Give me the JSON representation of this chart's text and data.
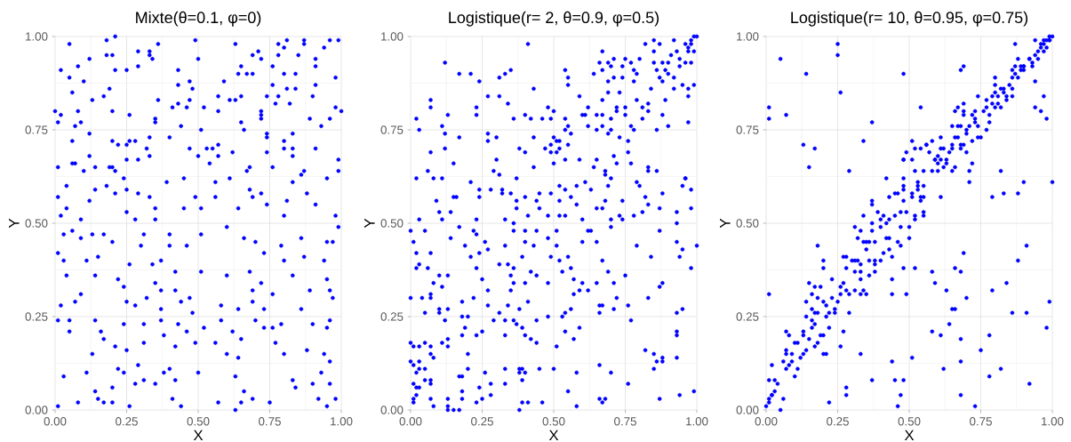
{
  "chart_data": [
    {
      "type": "scatter",
      "title": "Mixte(θ=0.1, φ=0)",
      "xlabel": "X",
      "ylabel": "Y",
      "color": "#0000ff",
      "marker": "circle",
      "grid": true,
      "xlim": [
        0,
        1
      ],
      "ylim": [
        0,
        1
      ],
      "xticks": [
        {
          "value": 0,
          "label": "0.00"
        },
        {
          "value": 0.25,
          "label": "0.25"
        },
        {
          "value": 0.5,
          "label": "0.50"
        },
        {
          "value": 0.75,
          "label": "0.75"
        },
        {
          "value": 1,
          "label": "1.00"
        }
      ],
      "yticks": [
        {
          "value": 0,
          "label": "0.00"
        },
        {
          "value": 0.25,
          "label": "0.25"
        },
        {
          "value": 0.5,
          "label": "0.50"
        },
        {
          "value": 0.75,
          "label": "0.75"
        },
        {
          "value": 1,
          "label": "1.00"
        }
      ],
      "x": [
        0.05,
        0.18,
        0.21,
        0.18,
        0.2,
        0.02,
        0.08,
        0.12,
        0.05,
        0.1,
        0.21,
        0.25,
        0.29,
        0.29,
        0.33,
        0.33,
        0.34,
        0.36,
        0.49,
        0.5,
        0.43,
        0.47,
        0.59,
        0.63,
        0.65,
        0.67,
        0.69,
        0.64,
        0.69,
        0.71,
        0.72,
        0.78,
        0.78,
        0.8,
        0.81,
        0.76,
        0.8,
        0.84,
        0.87,
        0.87,
        0.85,
        0.91,
        0.91,
        0.94,
        0.96,
        0.99,
        0.98,
        0.76,
        0.06,
        0.13,
        0.17,
        0.19,
        0.2,
        0.08,
        0.0,
        0.01,
        0.02,
        0.07,
        0.09,
        0.26,
        0.35,
        0.35,
        0.36,
        0.41,
        0.43,
        0.43,
        0.48,
        0.47,
        0.46,
        0.44,
        0.52,
        0.51,
        0.57,
        0.57,
        0.61,
        0.65,
        0.63,
        0.65,
        0.66,
        0.72,
        0.72,
        0.72,
        0.74,
        0.77,
        0.78,
        0.81,
        0.82,
        0.84,
        0.89,
        0.9,
        0.91,
        0.98,
        1.0,
        0.96,
        0.93,
        0.12,
        0.06,
        0.12,
        0.01,
        0.06,
        0.07,
        0.1,
        0.14,
        0.2,
        0.22,
        0.25,
        0.26,
        0.28,
        0.33,
        0.32,
        0.33,
        0.25,
        0.29,
        0.2,
        0.19,
        0.21,
        0.4,
        0.47,
        0.5,
        0.53,
        0.55,
        0.54,
        0.57,
        0.57,
        0.62,
        0.68,
        0.67,
        0.74,
        0.74,
        0.74,
        0.76,
        0.8,
        0.8,
        0.83,
        0.83,
        0.83,
        0.91,
        0.99,
        0.99,
        0.87,
        0.86,
        0.04,
        0.01,
        0.04,
        0.02,
        0.09,
        0.12,
        0.14,
        0.18,
        0.21,
        0.24,
        0.25,
        0.25,
        0.29,
        0.33,
        0.35,
        0.35,
        0.39,
        0.45,
        0.45,
        0.49,
        0.51,
        0.56,
        0.56,
        0.61,
        0.64,
        0.68,
        0.69,
        0.72,
        0.74,
        0.81,
        0.83,
        0.88,
        0.91,
        0.95,
        0.98,
        0.8,
        0.03,
        0.01,
        0.03,
        0.06,
        0.13,
        0.09,
        0.17,
        0.2,
        0.15,
        0.11,
        0.28,
        0.31,
        0.3,
        0.26,
        0.34,
        0.37,
        0.4,
        0.4,
        0.46,
        0.51,
        0.51,
        0.6,
        0.66,
        0.7,
        0.73,
        0.79,
        0.8,
        0.86,
        0.87,
        0.95,
        0.97,
        0.99,
        0.94,
        0.04,
        0.02,
        0.07,
        0.09,
        0.14,
        0.22,
        0.24,
        0.25,
        0.28,
        0.32,
        0.35,
        0.37,
        0.37,
        0.42,
        0.42,
        0.44,
        0.47,
        0.48,
        0.58,
        0.6,
        0.64,
        0.68,
        0.69,
        0.69,
        0.72,
        0.73,
        0.76,
        0.83,
        0.86,
        0.89,
        0.95,
        0.97,
        0.96,
        0.01,
        0.05,
        0.05,
        0.14,
        0.16,
        0.17,
        0.13,
        0.21,
        0.24,
        0.25,
        0.31,
        0.31,
        0.37,
        0.38,
        0.43,
        0.42,
        0.46,
        0.49,
        0.52,
        0.56,
        0.58,
        0.62,
        0.6,
        0.65,
        0.64,
        0.7,
        0.73,
        0.76,
        0.77,
        0.79,
        0.8,
        0.88,
        0.9,
        0.95,
        0.96,
        0.94,
        0.96,
        0.03,
        0.01,
        0.08,
        0.11,
        0.14,
        0.15,
        0.17,
        0.2,
        0.2,
        0.22,
        0.24,
        0.26,
        0.28,
        0.29,
        0.31,
        0.35,
        0.38,
        0.4,
        0.41,
        0.44,
        0.42,
        0.5,
        0.57,
        0.63,
        0.63,
        0.66,
        0.65,
        0.69,
        0.75,
        0.83,
        0.84,
        0.9,
        0.92,
        0.93,
        0.95,
        0.96,
        0.98
      ],
      "values": [
        0.98,
        0.99,
        1.0,
        0.95,
        0.95,
        0.91,
        0.92,
        0.94,
        0.89,
        0.88,
        0.91,
        0.91,
        0.96,
        0.92,
        0.95,
        0.96,
        0.94,
        0.98,
        0.99,
        0.94,
        0.91,
        0.88,
        0.88,
        0.98,
        0.92,
        0.9,
        0.9,
        0.9,
        0.95,
        0.96,
        0.94,
        0.98,
        0.95,
        0.97,
        0.99,
        0.92,
        0.9,
        0.9,
        0.98,
        0.99,
        0.95,
        0.94,
        0.92,
        0.97,
        0.99,
        0.99,
        0.89,
        0.87,
        0.85,
        0.83,
        0.84,
        0.86,
        0.8,
        0.8,
        0.8,
        0.77,
        0.79,
        0.76,
        0.77,
        0.79,
        0.78,
        0.77,
        0.83,
        0.81,
        0.82,
        0.87,
        0.86,
        0.83,
        0.81,
        0.76,
        0.81,
        0.75,
        0.84,
        0.8,
        0.83,
        0.84,
        0.83,
        0.77,
        0.75,
        0.8,
        0.79,
        0.78,
        0.84,
        0.82,
        0.84,
        0.86,
        0.82,
        0.86,
        0.78,
        0.84,
        0.87,
        0.81,
        0.8,
        0.78,
        0.76,
        0.74,
        0.72,
        0.68,
        0.65,
        0.66,
        0.66,
        0.64,
        0.65,
        0.72,
        0.71,
        0.71,
        0.72,
        0.72,
        0.73,
        0.7,
        0.68,
        0.67,
        0.67,
        0.65,
        0.65,
        0.64,
        0.73,
        0.7,
        0.68,
        0.7,
        0.7,
        0.66,
        0.71,
        0.68,
        0.69,
        0.65,
        0.64,
        0.74,
        0.73,
        0.69,
        0.65,
        0.72,
        0.7,
        0.7,
        0.68,
        0.74,
        0.7,
        0.67,
        0.64,
        0.64,
        0.63,
        0.6,
        0.57,
        0.54,
        0.52,
        0.51,
        0.56,
        0.59,
        0.6,
        0.58,
        0.62,
        0.59,
        0.53,
        0.58,
        0.57,
        0.54,
        0.51,
        0.61,
        0.62,
        0.54,
        0.57,
        0.54,
        0.57,
        0.61,
        0.62,
        0.54,
        0.59,
        0.57,
        0.58,
        0.55,
        0.56,
        0.61,
        0.58,
        0.55,
        0.62,
        0.52,
        0.52,
        0.47,
        0.42,
        0.4,
        0.48,
        0.47,
        0.46,
        0.47,
        0.45,
        0.41,
        0.4,
        0.51,
        0.47,
        0.44,
        0.39,
        0.39,
        0.4,
        0.47,
        0.44,
        0.44,
        0.47,
        0.37,
        0.49,
        0.46,
        0.45,
        0.42,
        0.44,
        0.4,
        0.46,
        0.41,
        0.45,
        0.45,
        0.49,
        0.4,
        0.36,
        0.28,
        0.29,
        0.31,
        0.36,
        0.35,
        0.33,
        0.29,
        0.28,
        0.3,
        0.34,
        0.32,
        0.27,
        0.32,
        0.37,
        0.29,
        0.3,
        0.26,
        0.28,
        0.36,
        0.27,
        0.37,
        0.32,
        0.29,
        0.34,
        0.27,
        0.31,
        0.36,
        0.27,
        0.32,
        0.35,
        0.3,
        0.32,
        0.24,
        0.24,
        0.21,
        0.24,
        0.21,
        0.19,
        0.15,
        0.17,
        0.23,
        0.16,
        0.23,
        0.18,
        0.24,
        0.2,
        0.23,
        0.17,
        0.21,
        0.18,
        0.22,
        0.18,
        0.24,
        0.21,
        0.15,
        0.19,
        0.14,
        0.24,
        0.22,
        0.22,
        0.18,
        0.23,
        0.15,
        0.16,
        0.23,
        0.22,
        0.24,
        0.15,
        0.13,
        0.09,
        0.01,
        0.02,
        0.1,
        0.05,
        0.03,
        0.02,
        0.06,
        0.02,
        0.11,
        0.1,
        0.01,
        0.07,
        0.12,
        0.08,
        0.07,
        0.1,
        0.11,
        0.03,
        0.01,
        0.08,
        0.1,
        0.02,
        0.0,
        0.09,
        0.05,
        0.02,
        0.03,
        0.02,
        0.08,
        0.06,
        0.07,
        0.03,
        0.1,
        0.01,
        0.07,
        0.03
      ]
    },
    {
      "type": "scatter",
      "title": "Logistique(r= 2, θ=0.9, φ=0.5)",
      "xlabel": "X",
      "ylabel": "Y",
      "color": "#0000ff",
      "marker": "circle",
      "grid": true,
      "xlim": [
        0,
        1
      ],
      "ylim": [
        0,
        1
      ],
      "xticks": [
        {
          "value": 0,
          "label": "0.00"
        },
        {
          "value": 0.25,
          "label": "0.25"
        },
        {
          "value": 0.5,
          "label": "0.50"
        },
        {
          "value": 0.75,
          "label": "0.75"
        },
        {
          "value": 1,
          "label": "1.00"
        }
      ],
      "yticks": [
        {
          "value": 0,
          "label": "0.00"
        },
        {
          "value": 0.25,
          "label": "0.25"
        },
        {
          "value": 0.5,
          "label": "0.50"
        },
        {
          "value": 0.75,
          "label": "0.75"
        },
        {
          "value": 1,
          "label": "1.00"
        }
      ],
      "x": [
        0.41,
        0.12,
        0.17,
        0.21,
        0.24,
        0.31,
        0.33,
        0.35,
        0.54,
        0.55,
        0.55,
        0.67,
        0.66,
        0.64,
        0.67,
        0.69,
        0.71,
        0.7,
        0.75,
        0.74,
        0.74,
        0.71,
        0.69,
        0.77,
        0.78,
        0.79,
        0.8,
        0.78,
        0.82,
        0.85,
        0.85,
        0.87,
        0.85,
        0.86,
        0.87,
        0.88,
        0.89,
        0.9,
        0.9,
        0.91,
        0.93,
        0.92,
        0.94,
        0.94,
        0.96,
        0.96,
        0.97,
        0.97,
        0.98,
        0.98,
        0.98,
        0.99,
        0.99,
        1.0,
        0.92,
        0.88,
        0.92,
        0.95,
        0.97,
        0.99,
        0.97,
        0.97,
        0.84,
        0.07,
        0.07,
        0.02,
        0.03,
        0.13,
        0.11,
        0.12,
        0.17,
        0.07,
        0.12,
        0.06,
        0.02,
        0.08,
        0.11,
        0.15,
        0.23,
        0.23,
        0.27,
        0.31,
        0.34,
        0.27,
        0.27,
        0.3,
        0.3,
        0.29,
        0.31,
        0.36,
        0.4,
        0.42,
        0.43,
        0.43,
        0.38,
        0.4,
        0.43,
        0.37,
        0.48,
        0.49,
        0.5,
        0.46,
        0.5,
        0.51,
        0.52,
        0.49,
        0.47,
        0.51,
        0.52,
        0.49,
        0.5,
        0.54,
        0.54,
        0.55,
        0.56,
        0.54,
        0.55,
        0.59,
        0.59,
        0.6,
        0.62,
        0.61,
        0.62,
        0.65,
        0.65,
        0.67,
        0.67,
        0.67,
        0.69,
        0.7,
        0.69,
        0.7,
        0.72,
        0.72,
        0.73,
        0.73,
        0.75,
        0.75,
        0.76,
        0.76,
        0.77,
        0.78,
        0.79,
        0.81,
        0.81,
        0.83,
        0.83,
        0.86,
        0.88,
        0.89,
        0.9,
        0.65,
        0.64,
        0.68,
        0.68,
        0.7,
        0.71,
        0.72,
        0.77,
        0.83,
        0.86,
        0.83,
        0.96,
        0.03,
        0.09,
        0.1,
        0.11,
        0.14,
        0.15,
        0.16,
        0.21,
        0.23,
        0.24,
        0.24,
        0.28,
        0.32,
        0.32,
        0.35,
        0.33,
        0.37,
        0.37,
        0.4,
        0.41,
        0.44,
        0.45,
        0.45,
        0.48,
        0.49,
        0.52,
        0.52,
        0.52,
        0.54,
        0.56,
        0.54,
        0.58,
        0.58,
        0.61,
        0.6,
        0.63,
        0.65,
        0.67,
        0.68,
        0.69,
        0.7,
        0.74,
        0.74,
        0.73,
        0.79,
        0.8,
        0.78,
        0.81,
        0.82,
        0.83,
        0.87,
        0.88,
        0.95,
        0.96,
        0.98,
        0.98,
        0.93,
        0.93,
        0.0,
        0.01,
        0.02,
        0.03,
        0.02,
        0.06,
        0.05,
        0.07,
        0.08,
        0.1,
        0.11,
        0.13,
        0.14,
        0.17,
        0.19,
        0.21,
        0.22,
        0.23,
        0.23,
        0.24,
        0.26,
        0.27,
        0.25,
        0.27,
        0.31,
        0.33,
        0.34,
        0.36,
        0.36,
        0.36,
        0.35,
        0.36,
        0.35,
        0.39,
        0.4,
        0.42,
        0.4,
        0.4,
        0.43,
        0.44,
        0.44,
        0.48,
        0.49,
        0.48,
        0.51,
        0.51,
        0.52,
        0.55,
        0.53,
        0.56,
        0.57,
        0.57,
        0.59,
        0.6,
        0.6,
        0.62,
        0.62,
        0.63,
        0.65,
        0.65,
        0.67,
        0.69,
        0.7,
        0.71,
        0.72,
        0.75,
        0.79,
        0.84,
        0.87,
        0.87,
        0.88,
        0.93,
        0.95,
        0.94,
        0.98,
        1.0,
        0.0,
        0.04,
        0.07,
        0.07,
        0.05,
        0.1,
        0.1,
        0.12,
        0.13,
        0.18,
        0.18,
        0.2,
        0.22,
        0.19,
        0.18,
        0.23,
        0.25,
        0.27,
        0.29,
        0.31,
        0.33,
        0.33,
        0.34,
        0.36,
        0.37,
        0.38,
        0.39,
        0.4,
        0.41,
        0.42,
        0.44,
        0.44,
        0.48,
        0.51,
        0.53,
        0.54,
        0.54,
        0.56,
        0.57,
        0.59,
        0.66,
        0.67,
        0.66,
        0.71,
        0.76,
        0.77,
        0.83,
        0.93,
        0.95,
        0.93,
        0.93,
        0.0,
        0.01,
        0.03,
        0.05,
        0.07,
        0.07,
        0.08,
        0.0,
        0.03,
        0.01,
        0.03,
        0.05,
        0.02,
        0.01,
        0.02,
        0.03,
        0.05,
        0.07,
        0.07,
        0.02,
        0.01,
        0.01,
        0.07,
        0.08,
        0.11,
        0.13,
        0.13,
        0.13,
        0.13,
        0.13,
        0.15,
        0.17,
        0.17,
        0.18,
        0.18,
        0.18,
        0.2,
        0.2,
        0.23,
        0.24,
        0.25,
        0.26,
        0.28,
        0.28,
        0.33,
        0.33,
        0.38,
        0.38,
        0.39,
        0.4,
        0.39,
        0.39,
        0.41,
        0.38,
        0.45,
        0.46,
        0.5,
        0.55,
        0.58,
        0.58,
        0.66,
        0.66,
        0.67,
        0.68,
        0.7,
        0.76,
        0.82,
        0.85,
        0.85,
        0.86,
        0.88,
        0.88,
        0.87,
        0.93,
        0.94,
        0.99
      ],
      "values": [
        0.98,
        0.93,
        0.9,
        0.9,
        0.88,
        0.89,
        0.9,
        0.91,
        0.91,
        0.89,
        0.87,
        0.96,
        0.93,
        0.9,
        0.91,
        0.93,
        0.94,
        0.92,
        0.94,
        0.92,
        0.89,
        0.89,
        0.88,
        0.93,
        0.91,
        0.9,
        0.94,
        0.88,
        0.98,
        0.99,
        0.96,
        0.98,
        0.93,
        0.91,
        0.89,
        0.93,
        0.91,
        0.93,
        0.9,
        0.95,
        0.96,
        0.99,
        0.94,
        0.92,
        0.98,
        0.93,
        0.97,
        0.96,
        0.93,
        0.98,
        0.99,
        1.0,
        0.96,
        1.0,
        0.89,
        0.88,
        0.86,
        0.87,
        0.86,
        0.87,
        0.84,
        0.77,
        0.86,
        0.83,
        0.81,
        0.78,
        0.75,
        0.79,
        0.76,
        0.74,
        0.73,
        0.69,
        0.7,
        0.64,
        0.62,
        0.62,
        0.62,
        0.66,
        0.81,
        0.79,
        0.84,
        0.84,
        0.82,
        0.74,
        0.72,
        0.73,
        0.67,
        0.64,
        0.63,
        0.78,
        0.79,
        0.78,
        0.86,
        0.73,
        0.7,
        0.69,
        0.65,
        0.62,
        0.81,
        0.78,
        0.8,
        0.78,
        0.73,
        0.72,
        0.72,
        0.71,
        0.7,
        0.69,
        0.7,
        0.69,
        0.66,
        0.67,
        0.75,
        0.76,
        0.74,
        0.78,
        0.71,
        0.67,
        0.84,
        0.79,
        0.81,
        0.79,
        0.76,
        0.79,
        0.75,
        0.83,
        0.79,
        0.76,
        0.85,
        0.78,
        0.74,
        0.75,
        0.81,
        0.8,
        0.85,
        0.73,
        0.81,
        0.79,
        0.72,
        0.69,
        0.76,
        0.75,
        0.83,
        0.81,
        0.78,
        0.82,
        0.8,
        0.75,
        0.79,
        0.83,
        0.76,
        0.67,
        0.65,
        0.64,
        0.63,
        0.62,
        0.68,
        0.66,
        0.66,
        0.65,
        0.64,
        0.64,
        0.62,
        0.51,
        0.56,
        0.53,
        0.51,
        0.53,
        0.57,
        0.57,
        0.61,
        0.51,
        0.59,
        0.57,
        0.59,
        0.59,
        0.58,
        0.58,
        0.51,
        0.56,
        0.54,
        0.57,
        0.52,
        0.56,
        0.58,
        0.54,
        0.52,
        0.58,
        0.6,
        0.56,
        0.52,
        0.52,
        0.57,
        0.59,
        0.6,
        0.55,
        0.61,
        0.51,
        0.59,
        0.54,
        0.54,
        0.56,
        0.6,
        0.51,
        0.51,
        0.56,
        0.52,
        0.61,
        0.6,
        0.52,
        0.53,
        0.57,
        0.55,
        0.54,
        0.58,
        0.6,
        0.62,
        0.59,
        0.54,
        0.53,
        0.5,
        0.48,
        0.45,
        0.42,
        0.39,
        0.38,
        0.38,
        0.48,
        0.42,
        0.34,
        0.36,
        0.33,
        0.36,
        0.46,
        0.49,
        0.44,
        0.41,
        0.48,
        0.47,
        0.38,
        0.42,
        0.45,
        0.43,
        0.35,
        0.32,
        0.39,
        0.44,
        0.39,
        0.38,
        0.5,
        0.48,
        0.36,
        0.34,
        0.32,
        0.41,
        0.34,
        0.37,
        0.45,
        0.48,
        0.44,
        0.48,
        0.36,
        0.46,
        0.41,
        0.34,
        0.48,
        0.44,
        0.4,
        0.41,
        0.37,
        0.38,
        0.35,
        0.31,
        0.32,
        0.34,
        0.45,
        0.48,
        0.32,
        0.48,
        0.34,
        0.45,
        0.4,
        0.37,
        0.49,
        0.34,
        0.3,
        0.36,
        0.44,
        0.41,
        0.48,
        0.33,
        0.34,
        0.45,
        0.43,
        0.41,
        0.38,
        0.44,
        0.3,
        0.3,
        0.31,
        0.3,
        0.26,
        0.27,
        0.26,
        0.24,
        0.27,
        0.29,
        0.25,
        0.25,
        0.3,
        0.22,
        0.2,
        0.2,
        0.21,
        0.28,
        0.24,
        0.26,
        0.2,
        0.24,
        0.28,
        0.24,
        0.23,
        0.27,
        0.22,
        0.2,
        0.29,
        0.19,
        0.24,
        0.18,
        0.25,
        0.17,
        0.25,
        0.21,
        0.26,
        0.27,
        0.19,
        0.22,
        0.28,
        0.28,
        0.26,
        0.27,
        0.28,
        0.24,
        0.3,
        0.26,
        0.27,
        0.21,
        0.2,
        0.18,
        0.17,
        0.17,
        0.18,
        0.17,
        0.15,
        0.14,
        0.13,
        0.13,
        0.12,
        0.11,
        0.11,
        0.1,
        0.07,
        0.06,
        0.06,
        0.08,
        0.08,
        0.07,
        0.04,
        0.03,
        0.02,
        0.03,
        0.01,
        0.18,
        0.19,
        0.17,
        0.03,
        0.01,
        0.0,
        0.0,
        0.0,
        0.09,
        0.09,
        0.05,
        0.03,
        0.15,
        0.11,
        0.02,
        0.06,
        0.03,
        0.1,
        0.07,
        0.04,
        0.07,
        0.11,
        0.11,
        0.1,
        0.11,
        0.1,
        0.08,
        0.02,
        0.02,
        0.0,
        0.11,
        0.02,
        0.11,
        0.05,
        0.1,
        0.01,
        0.12,
        0.03,
        0.02,
        0.03,
        0.1,
        0.07,
        0.16,
        0.15,
        0.11,
        0.13,
        0.14,
        0.13,
        0.03,
        0.14,
        0.04,
        0.05
      ]
    },
    {
      "type": "scatter",
      "title": "Logistique(r= 10, θ=0.95, φ=0.75)",
      "xlabel": "X",
      "ylabel": "Y",
      "color": "#0000ff",
      "marker": "circle",
      "grid": true,
      "xlim": [
        0,
        1
      ],
      "ylim": [
        0,
        1
      ],
      "xticks": [
        {
          "value": 0,
          "label": "0.00"
        },
        {
          "value": 0.25,
          "label": "0.25"
        },
        {
          "value": 0.5,
          "label": "0.50"
        },
        {
          "value": 0.75,
          "label": "0.75"
        },
        {
          "value": 1,
          "label": "1.00"
        }
      ],
      "yticks": [
        {
          "value": 0,
          "label": "0.00"
        },
        {
          "value": 0.25,
          "label": "0.25"
        },
        {
          "value": 0.5,
          "label": "0.50"
        },
        {
          "value": 0.75,
          "label": "0.75"
        },
        {
          "value": 1,
          "label": "1.00"
        }
      ],
      "x": [
        0.05,
        0.25,
        0.25,
        0.14,
        0.48,
        0.26,
        0.01,
        0.01,
        0.07,
        0.54,
        0.37,
        0.13,
        0.17,
        0.34,
        0.15,
        0.29,
        0.68,
        0.69,
        0.87,
        0.88,
        0.94,
        0.97,
        0.94,
        0.96,
        0.98,
        1.0,
        0.9,
        0.88,
        0.83,
        0.79,
        0.82,
        0.61,
        0.18,
        0.01,
        0.91,
        0.88,
        0.69,
        0.66,
        0.68,
        0.58,
        0.59,
        0.52,
        0.48,
        0.44,
        0.44,
        0.49,
        0.84,
        0.79,
        0.7,
        0.63,
        0.66,
        0.65,
        0.86,
        0.91,
        0.99,
        0.98,
        0.64,
        0.58,
        0.61,
        0.68,
        0.78,
        0.75,
        0.51,
        0.44,
        0.68,
        0.62,
        0.82,
        0.78,
        0.92,
        0.37,
        0.45,
        0.48,
        0.47,
        0.46,
        0.68,
        0.73,
        0.27,
        0.26,
        0.33,
        0.28,
        0.28,
        0.22,
        0.0,
        0.01,
        0.01,
        0.02,
        0.02,
        0.03,
        0.04,
        0.03,
        0.01,
        0.05,
        0.06,
        0.02,
        0.06,
        0.07,
        0.08,
        0.09,
        0.1,
        0.11,
        0.07,
        0.07,
        0.09,
        0.1,
        0.11,
        0.07,
        0.08,
        0.12,
        0.13,
        0.13,
        0.13,
        0.14,
        0.15,
        0.14,
        0.16,
        0.16,
        0.17,
        0.17,
        0.18,
        0.19,
        0.2,
        0.21,
        0.22,
        0.2,
        0.14,
        0.15,
        0.16,
        0.16,
        0.17,
        0.17,
        0.18,
        0.18,
        0.19,
        0.2,
        0.21,
        0.21,
        0.22,
        0.2,
        0.2,
        0.23,
        0.23,
        0.24,
        0.24,
        0.25,
        0.26,
        0.26,
        0.27,
        0.27,
        0.28,
        0.28,
        0.28,
        0.29,
        0.29,
        0.3,
        0.31,
        0.31,
        0.31,
        0.32,
        0.33,
        0.33,
        0.33,
        0.33,
        0.34,
        0.35,
        0.31,
        0.32,
        0.33,
        0.34,
        0.34,
        0.35,
        0.35,
        0.36,
        0.36,
        0.36,
        0.37,
        0.37,
        0.37,
        0.37,
        0.38,
        0.38,
        0.38,
        0.38,
        0.39,
        0.4,
        0.4,
        0.4,
        0.41,
        0.41,
        0.42,
        0.42,
        0.42,
        0.43,
        0.43,
        0.43,
        0.43,
        0.44,
        0.45,
        0.45,
        0.46,
        0.46,
        0.47,
        0.47,
        0.47,
        0.48,
        0.48,
        0.48,
        0.48,
        0.48,
        0.48,
        0.49,
        0.49,
        0.5,
        0.5,
        0.51,
        0.51,
        0.51,
        0.51,
        0.52,
        0.52,
        0.52,
        0.52,
        0.53,
        0.53,
        0.53,
        0.54,
        0.54,
        0.54,
        0.55,
        0.55,
        0.55,
        0.55,
        0.55,
        0.56,
        0.56,
        0.57,
        0.58,
        0.58,
        0.59,
        0.59,
        0.6,
        0.6,
        0.6,
        0.61,
        0.61,
        0.61,
        0.62,
        0.62,
        0.63,
        0.63,
        0.64,
        0.65,
        0.65,
        0.65,
        0.65,
        0.66,
        0.66,
        0.66,
        0.67,
        0.67,
        0.67,
        0.68,
        0.68,
        0.68,
        0.69,
        0.69,
        0.69,
        0.69,
        0.7,
        0.7,
        0.7,
        0.71,
        0.71,
        0.71,
        0.72,
        0.72,
        0.72,
        0.73,
        0.73,
        0.73,
        0.74,
        0.74,
        0.74,
        0.75,
        0.76,
        0.77,
        0.77,
        0.77,
        0.78,
        0.78,
        0.79,
        0.79,
        0.8,
        0.8,
        0.8,
        0.8,
        0.81,
        0.81,
        0.82,
        0.82,
        0.83,
        0.83,
        0.84,
        0.84,
        0.85,
        0.86,
        0.86,
        0.86,
        0.86,
        0.87,
        0.87,
        0.88,
        0.89,
        0.89,
        0.9,
        0.9,
        0.9,
        0.92,
        0.92,
        0.93,
        0.93,
        0.94,
        0.94,
        0.95,
        0.95,
        0.96,
        0.96,
        0.97,
        0.97,
        0.97,
        0.98,
        0.98,
        0.99,
        0.99,
        0.99,
        1.0
      ],
      "values": [
        0.94,
        0.98,
        0.95,
        0.9,
        0.9,
        0.85,
        0.81,
        0.78,
        0.79,
        0.81,
        0.77,
        0.71,
        0.7,
        0.72,
        0.65,
        0.64,
        0.91,
        0.92,
        0.98,
        0.94,
        0.88,
        0.84,
        0.81,
        0.8,
        0.78,
        0.61,
        0.61,
        0.58,
        0.58,
        0.57,
        0.64,
        0.57,
        0.44,
        0.31,
        0.44,
        0.4,
        0.42,
        0.38,
        0.37,
        0.37,
        0.34,
        0.38,
        0.38,
        0.35,
        0.31,
        0.31,
        0.34,
        0.32,
        0.3,
        0.32,
        0.27,
        0.27,
        0.26,
        0.26,
        0.29,
        0.22,
        0.23,
        0.21,
        0.2,
        0.19,
        0.2,
        0.16,
        0.14,
        0.13,
        0.13,
        0.11,
        0.11,
        0.09,
        0.07,
        0.08,
        0.08,
        0.08,
        0.04,
        0.01,
        0.04,
        0.01,
        0.21,
        0.17,
        0.15,
        0.06,
        0.04,
        0.02,
        0.01,
        0.02,
        0.03,
        0.04,
        0.04,
        0.05,
        0.07,
        0.08,
        0.08,
        0.0,
        0.03,
        0.12,
        0.13,
        0.11,
        0.12,
        0.13,
        0.09,
        0.11,
        0.16,
        0.15,
        0.15,
        0.18,
        0.18,
        0.21,
        0.2,
        0.14,
        0.21,
        0.2,
        0.15,
        0.16,
        0.19,
        0.25,
        0.24,
        0.22,
        0.23,
        0.17,
        0.18,
        0.2,
        0.15,
        0.15,
        0.22,
        0.2,
        0.29,
        0.34,
        0.27,
        0.31,
        0.33,
        0.26,
        0.26,
        0.3,
        0.33,
        0.29,
        0.25,
        0.28,
        0.26,
        0.4,
        0.38,
        0.35,
        0.3,
        0.27,
        0.26,
        0.29,
        0.31,
        0.33,
        0.34,
        0.41,
        0.41,
        0.38,
        0.32,
        0.31,
        0.26,
        0.4,
        0.4,
        0.37,
        0.32,
        0.4,
        0.39,
        0.37,
        0.35,
        0.31,
        0.32,
        0.31,
        0.49,
        0.46,
        0.48,
        0.52,
        0.45,
        0.45,
        0.43,
        0.4,
        0.45,
        0.36,
        0.56,
        0.55,
        0.5,
        0.48,
        0.39,
        0.37,
        0.4,
        0.45,
        0.53,
        0.49,
        0.51,
        0.4,
        0.42,
        0.52,
        0.46,
        0.62,
        0.5,
        0.57,
        0.46,
        0.43,
        0.51,
        0.41,
        0.52,
        0.58,
        0.58,
        0.45,
        0.53,
        0.49,
        0.44,
        0.56,
        0.67,
        0.62,
        0.6,
        0.59,
        0.67,
        0.53,
        0.69,
        0.49,
        0.46,
        0.67,
        0.72,
        0.58,
        0.57,
        0.51,
        0.52,
        0.7,
        0.64,
        0.59,
        0.61,
        0.6,
        0.56,
        0.7,
        0.57,
        0.53,
        0.52,
        0.64,
        0.6,
        0.57,
        0.71,
        0.71,
        0.69,
        0.64,
        0.72,
        0.67,
        0.67,
        0.66,
        0.64,
        0.68,
        0.7,
        0.73,
        0.67,
        0.65,
        0.7,
        0.67,
        0.66,
        0.69,
        0.7,
        0.76,
        0.64,
        0.71,
        0.73,
        0.65,
        0.8,
        0.81,
        0.73,
        0.76,
        0.7,
        0.76,
        0.71,
        0.71,
        0.8,
        0.82,
        0.79,
        0.74,
        0.69,
        0.75,
        0.76,
        0.61,
        0.64,
        0.72,
        0.79,
        0.66,
        0.78,
        0.8,
        0.77,
        0.76,
        0.73,
        0.84,
        0.73,
        0.8,
        0.75,
        0.83,
        0.81,
        0.79,
        0.77,
        0.84,
        0.82,
        0.81,
        0.87,
        0.89,
        0.85,
        0.82,
        0.84,
        0.81,
        0.86,
        0.86,
        0.85,
        0.83,
        0.84,
        0.87,
        0.84,
        0.86,
        0.91,
        0.89,
        0.9,
        0.92,
        0.89,
        0.91,
        0.92,
        0.91,
        0.92,
        0.92,
        0.94,
        0.94,
        0.92,
        0.93,
        0.95,
        0.99,
        0.96,
        0.94,
        0.97,
        0.98,
        0.96,
        0.98,
        0.99,
        0.97,
        0.99,
        0.99,
        1.0,
        0.99,
        1.0
      ]
    }
  ]
}
